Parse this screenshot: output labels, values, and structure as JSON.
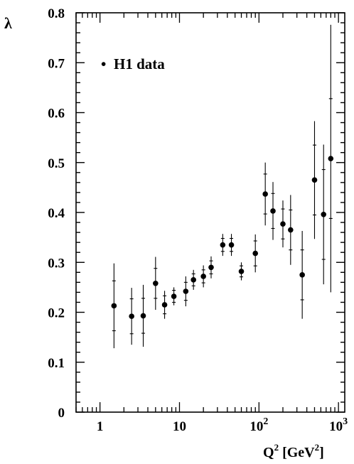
{
  "chart_data": {
    "type": "scatter",
    "title": "",
    "xscale": "log",
    "xlim": [
      0.5,
      1200
    ],
    "ylim": [
      0,
      0.8
    ],
    "x_ticks": [
      {
        "value": 1,
        "label": "1"
      },
      {
        "value": 10,
        "label": "10"
      },
      {
        "value": 100,
        "label": "10",
        "sup": "2"
      },
      {
        "value": 1000,
        "label": "10",
        "sup": "3"
      }
    ],
    "y_ticks": [
      {
        "value": 0,
        "label": "0"
      },
      {
        "value": 0.1,
        "label": "0.1"
      },
      {
        "value": 0.2,
        "label": "0.2"
      },
      {
        "value": 0.3,
        "label": "0.3"
      },
      {
        "value": 0.4,
        "label": "0.4"
      },
      {
        "value": 0.5,
        "label": "0.5"
      },
      {
        "value": 0.6,
        "label": "0.6"
      },
      {
        "value": 0.7,
        "label": "0.7"
      },
      {
        "value": 0.8,
        "label": "0.8"
      }
    ],
    "xlabel": {
      "base": "Q",
      "sup": "2",
      "unit_open": " [GeV",
      "unit_sup": "2",
      "unit_close": "]"
    },
    "ylabel": "λ",
    "legend": {
      "position": "top-left",
      "marker": "•",
      "label": "H1 data"
    },
    "series": [
      {
        "name": "H1 data",
        "points": [
          {
            "x": 1.5,
            "y": 0.213,
            "err_lo": 0.085,
            "err_hi": 0.085,
            "inner": 0.05
          },
          {
            "x": 2.5,
            "y": 0.192,
            "err_lo": 0.057,
            "err_hi": 0.057,
            "inner": 0.035
          },
          {
            "x": 3.5,
            "y": 0.193,
            "err_lo": 0.062,
            "err_hi": 0.062,
            "inner": 0.035
          },
          {
            "x": 5.0,
            "y": 0.258,
            "err_lo": 0.053,
            "err_hi": 0.053,
            "inner": 0.03
          },
          {
            "x": 6.5,
            "y": 0.215,
            "err_lo": 0.028,
            "err_hi": 0.028,
            "inner": 0.018
          },
          {
            "x": 8.5,
            "y": 0.232,
            "err_lo": 0.018,
            "err_hi": 0.018,
            "inner": 0.012
          },
          {
            "x": 12,
            "y": 0.242,
            "err_lo": 0.03,
            "err_hi": 0.03,
            "inner": 0.018
          },
          {
            "x": 15,
            "y": 0.265,
            "err_lo": 0.02,
            "err_hi": 0.02,
            "inner": 0.012
          },
          {
            "x": 20,
            "y": 0.272,
            "err_lo": 0.022,
            "err_hi": 0.022,
            "inner": 0.013
          },
          {
            "x": 25,
            "y": 0.29,
            "err_lo": 0.022,
            "err_hi": 0.022,
            "inner": 0.013
          },
          {
            "x": 35,
            "y": 0.335,
            "err_lo": 0.022,
            "err_hi": 0.022,
            "inner": 0.013
          },
          {
            "x": 45,
            "y": 0.335,
            "err_lo": 0.022,
            "err_hi": 0.022,
            "inner": 0.013
          },
          {
            "x": 60,
            "y": 0.282,
            "err_lo": 0.018,
            "err_hi": 0.018,
            "inner": 0.011
          },
          {
            "x": 90,
            "y": 0.318,
            "err_lo": 0.038,
            "err_hi": 0.038,
            "inner": 0.025
          },
          {
            "x": 120,
            "y": 0.437,
            "err_lo": 0.063,
            "err_hi": 0.063,
            "inner": 0.04
          },
          {
            "x": 150,
            "y": 0.403,
            "err_lo": 0.058,
            "err_hi": 0.058,
            "inner": 0.035
          },
          {
            "x": 200,
            "y": 0.377,
            "err_lo": 0.047,
            "err_hi": 0.047,
            "inner": 0.03
          },
          {
            "x": 250,
            "y": 0.365,
            "err_lo": 0.07,
            "err_hi": 0.07,
            "inner": 0.04
          },
          {
            "x": 350,
            "y": 0.275,
            "err_lo": 0.088,
            "err_hi": 0.088,
            "inner": 0.05
          },
          {
            "x": 500,
            "y": 0.465,
            "err_lo": 0.118,
            "err_hi": 0.118,
            "inner": 0.07
          },
          {
            "x": 650,
            "y": 0.396,
            "err_lo": 0.14,
            "err_hi": 0.14,
            "inner": 0.09
          },
          {
            "x": 800,
            "y": 0.508,
            "err_lo": 0.268,
            "err_hi": 0.268,
            "inner": 0.12
          }
        ]
      }
    ]
  }
}
